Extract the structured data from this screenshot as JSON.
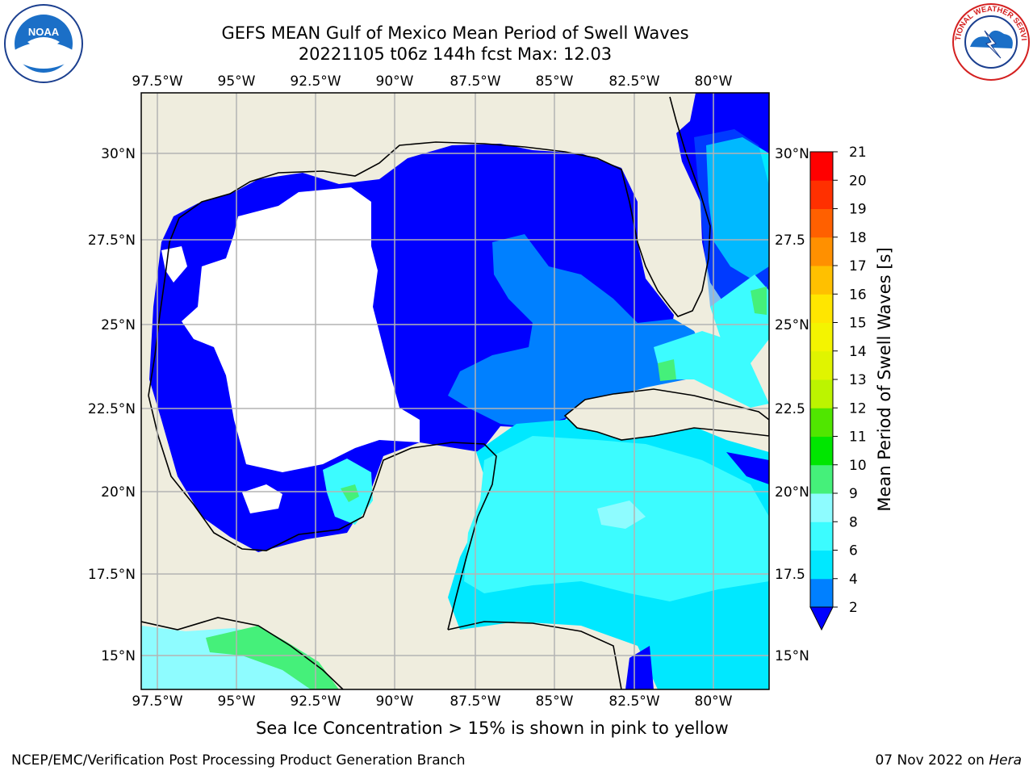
{
  "header": {
    "title_line1": "GEFS MEAN Gulf of Mexico Mean Period of Swell Waves",
    "title_line2": "20221105 t06z 144h fcst   Max: 12.03"
  },
  "logos": {
    "left": "NOAA",
    "right": "NATIONAL WEATHER SERVICE"
  },
  "map": {
    "lon_labels": [
      "97.5°W",
      "95°W",
      "92.5°W",
      "90°W",
      "87.5°W",
      "85°W",
      "82.5°W",
      "80°W"
    ],
    "lat_labels_left": [
      "30°N",
      "27.5°N",
      "25°N",
      "22.5°N",
      "20°N",
      "17.5°N",
      "15°N"
    ],
    "lat_labels_right": [
      "30°N",
      "27.5",
      "25°N",
      "22.5",
      "20°N",
      "17.5",
      "15°N"
    ],
    "colors": {
      "land": "#efedde",
      "grid": "#b3b3b3"
    }
  },
  "colorbar": {
    "title": "Mean Period of Swell Waves [s]",
    "ticks": [
      "2",
      "4",
      "6",
      "8",
      "9",
      "10",
      "11",
      "12",
      "13",
      "14",
      "15",
      "16",
      "17",
      "18",
      "19",
      "20",
      "21"
    ],
    "bands": [
      {
        "from": 2,
        "to": 4,
        "color": "#0080ff"
      },
      {
        "from": 4,
        "to": 6,
        "color": "#00e8ff"
      },
      {
        "from": 6,
        "to": 8,
        "color": "#3cfcff"
      },
      {
        "from": 8,
        "to": 9,
        "color": "#8efcff"
      },
      {
        "from": 9,
        "to": 10,
        "color": "#45f07a"
      },
      {
        "from": 10,
        "to": 11,
        "color": "#00e600"
      },
      {
        "from": 11,
        "to": 12,
        "color": "#50e600"
      },
      {
        "from": 12,
        "to": 13,
        "color": "#bcf400"
      },
      {
        "from": 13,
        "to": 14,
        "color": "#e0f400"
      },
      {
        "from": 14,
        "to": 15,
        "color": "#f4f400"
      },
      {
        "from": 15,
        "to": 16,
        "color": "#ffe600"
      },
      {
        "from": 16,
        "to": 17,
        "color": "#ffc000"
      },
      {
        "from": 17,
        "to": 18,
        "color": "#ff9000"
      },
      {
        "from": 18,
        "to": 19,
        "color": "#ff6000"
      },
      {
        "from": 19,
        "to": 20,
        "color": "#ff3000"
      },
      {
        "from": 20,
        "to": 21,
        "color": "#ff0000"
      }
    ],
    "under_color": "#0000ff"
  },
  "notes": {
    "sea_ice": "Sea Ice Concentration > 15% is shown in pink to yellow",
    "footer_left": "NCEP/EMC/Verification Post Processing Product Generation Branch",
    "footer_date": "07 Nov 2022 on ",
    "footer_host": "Hera"
  }
}
